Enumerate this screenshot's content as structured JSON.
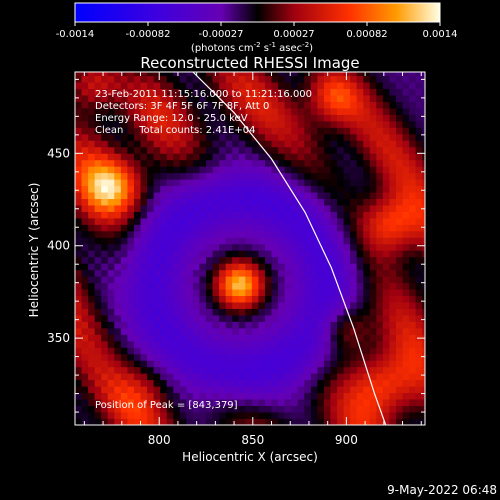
{
  "chart_data": {
    "type": "heatmap",
    "title": "Reconstructed RHESSI Image",
    "xlabel": "Heliocentric X (arcsec)",
    "ylabel": "Heliocentric Y (arcsec)",
    "xlim": [
      755,
      942
    ],
    "ylim": [
      303,
      494
    ],
    "xticks": [
      800,
      850,
      900
    ],
    "yticks": [
      350,
      400,
      450
    ],
    "colorbar": {
      "range": [
        -0.0014,
        0.0014
      ],
      "ticks": [
        "-0.0014",
        "-0.00082",
        "-0.00027",
        "0.00027",
        "0.00082",
        "0.0014"
      ],
      "label_prefix": "(photons cm",
      "label_exp1": "-2",
      "label_mid": " s",
      "label_exp2": "-1",
      "label_mid2": " asec",
      "label_exp3": "-2",
      "label_suffix": ")"
    },
    "info": [
      "23-Feb-2011 11:15:16.000 to 11:21:16.000",
      "Detectors: 3F 4F 5F 6F 7F 8F, Att 0",
      "Energy Range: 12.0 - 25.0 keV",
      "Clean     Total counts: 2.41E+04"
    ],
    "peak_label": "Position of Peak = [843,379]",
    "peak": [
      843,
      379
    ],
    "sources": [
      {
        "x": 843,
        "y": 379,
        "amp": 1.0,
        "sigma": 9
      },
      {
        "x": 775,
        "y": 432,
        "amp": 0.72,
        "sigma": 11
      },
      {
        "x": 924,
        "y": 412,
        "amp": 0.55,
        "sigma": 11
      },
      {
        "x": 893,
        "y": 480,
        "amp": 0.45,
        "sigma": 10
      },
      {
        "x": 765,
        "y": 488,
        "amp": 0.4,
        "sigma": 10
      },
      {
        "x": 920,
        "y": 325,
        "amp": 0.5,
        "sigma": 12
      },
      {
        "x": 900,
        "y": 355,
        "amp": 0.35,
        "sigma": 9
      },
      {
        "x": 790,
        "y": 320,
        "amp": 0.28,
        "sigma": 12
      }
    ],
    "limb": [
      [
        818,
        494
      ],
      [
        840,
        472
      ],
      [
        860,
        447
      ],
      [
        878,
        418
      ],
      [
        892,
        388
      ],
      [
        904,
        355
      ],
      [
        915,
        320
      ],
      [
        921,
        303
      ]
    ]
  },
  "footer_date": "9-May-2022 06:48"
}
